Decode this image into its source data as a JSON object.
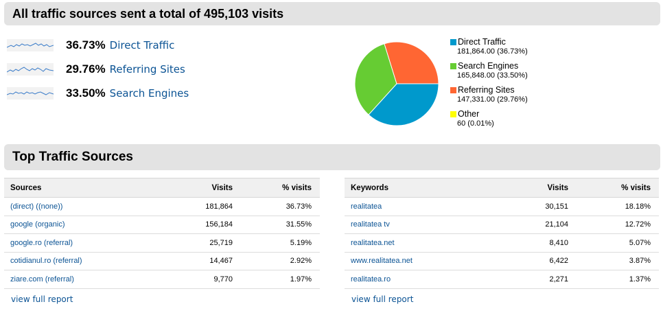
{
  "summary_header": "All traffic sources sent a total of 495,103 visits",
  "metrics": [
    {
      "pct": "36.73%",
      "label": "Direct Traffic"
    },
    {
      "pct": "29.76%",
      "label": "Referring Sites"
    },
    {
      "pct": "33.50%",
      "label": "Search Engines"
    }
  ],
  "chart_data": {
    "type": "pie",
    "slices": [
      {
        "name": "Direct Traffic",
        "value": 181864.0,
        "percent": 36.73,
        "color": "#0099cc",
        "value_label": "181,864.00 (36.73%)"
      },
      {
        "name": "Search Engines",
        "value": 165848.0,
        "percent": 33.5,
        "color": "#66cc33",
        "value_label": "165,848.00 (33.50%)"
      },
      {
        "name": "Referring Sites",
        "value": 147331.0,
        "percent": 29.76,
        "color": "#ff6633",
        "value_label": "147,331.00 (29.76%)"
      },
      {
        "name": "Other",
        "value": 60,
        "percent": 0.01,
        "color": "#ffff00",
        "value_label": "60 (0.01%)"
      }
    ],
    "legend_placement": "right"
  },
  "top_sources_header": "Top Traffic Sources",
  "sources_table": {
    "columns": [
      "Sources",
      "Visits",
      "% visits"
    ],
    "rows": [
      [
        "(direct) ((none))",
        "181,864",
        "36.73%"
      ],
      [
        "google (organic)",
        "156,184",
        "31.55%"
      ],
      [
        "google.ro (referral)",
        "25,719",
        "5.19%"
      ],
      [
        "cotidianul.ro (referral)",
        "14,467",
        "2.92%"
      ],
      [
        "ziare.com (referral)",
        "9,770",
        "1.97%"
      ]
    ],
    "view_full": "view full report"
  },
  "keywords_table": {
    "columns": [
      "Keywords",
      "Visits",
      "% visits"
    ],
    "rows": [
      [
        "realitatea",
        "30,151",
        "18.18%"
      ],
      [
        "realitatea tv",
        "21,104",
        "12.72%"
      ],
      [
        "realitatea.net",
        "8,410",
        "5.07%"
      ],
      [
        "www.realitatea.net",
        "6,422",
        "3.87%"
      ],
      [
        "realitatea.ro",
        "2,271",
        "1.37%"
      ]
    ],
    "view_full": "view full report"
  },
  "colors": {
    "link": "#0b5394",
    "header_bg": "#e3e3e3",
    "table_header_bg": "#f0f0f0"
  }
}
